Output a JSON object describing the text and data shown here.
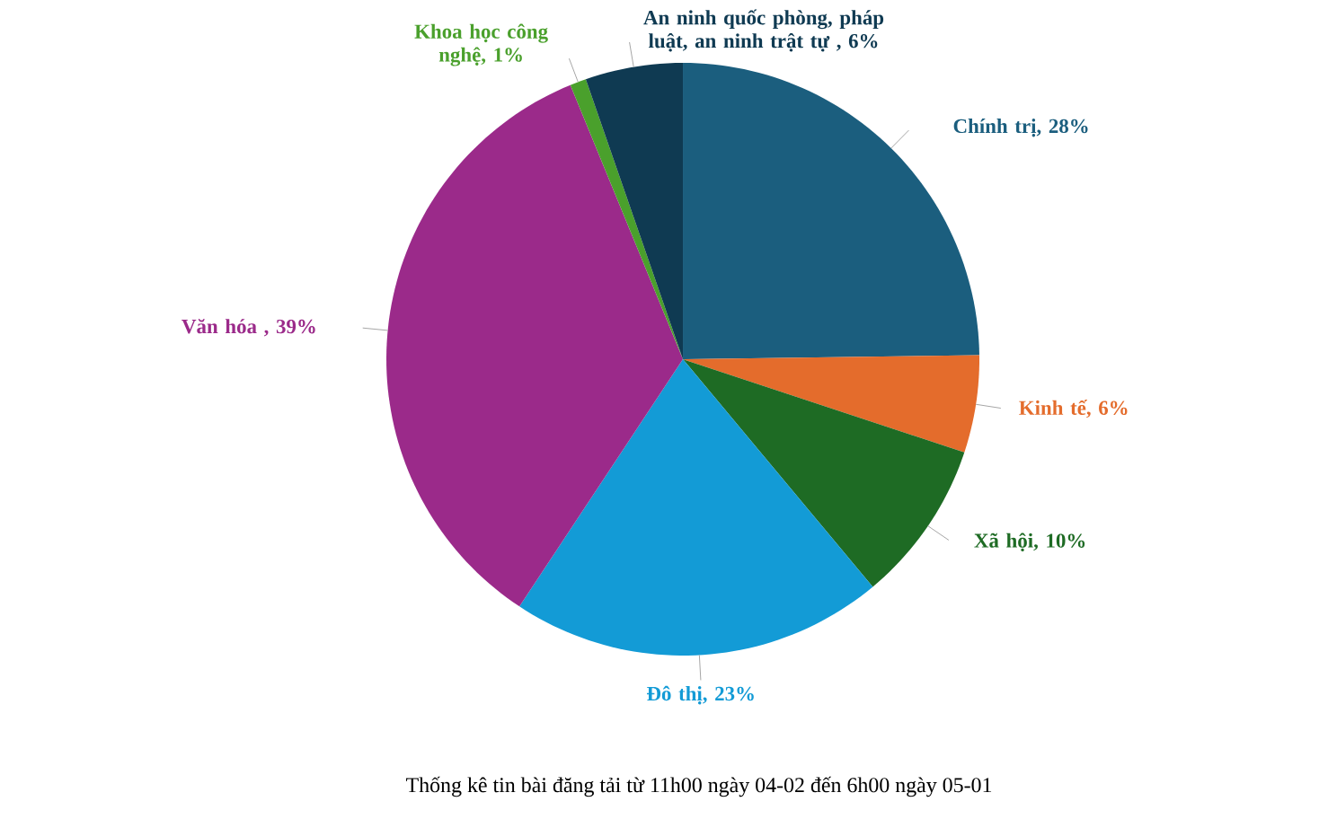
{
  "chart_data": {
    "type": "pie",
    "categories": [
      "Chính trị",
      "Kinh tế",
      "Xã hội",
      "Đô thị",
      "Văn hóa",
      "Khoa học công nghệ",
      "An ninh quốc phòng, pháp luật, an ninh trật tự"
    ],
    "values": [
      28,
      6,
      10,
      23,
      39,
      1,
      6
    ],
    "value_labels": [
      ", 28%",
      ", 6%",
      ", 10%",
      ", 23%",
      " , 39%",
      ", 1%",
      " , 6%"
    ],
    "colors": [
      "#1b5e7e",
      "#e46c2c",
      "#1e6b24",
      "#139bd6",
      "#9b2a8a",
      "#4aa02c",
      "#0f3a52"
    ],
    "legend": false,
    "annotations": [
      "Thống kê tin bài đăng tải từ 11h00 ngày 04-02 đến 6h00 ngày 05-01"
    ]
  }
}
